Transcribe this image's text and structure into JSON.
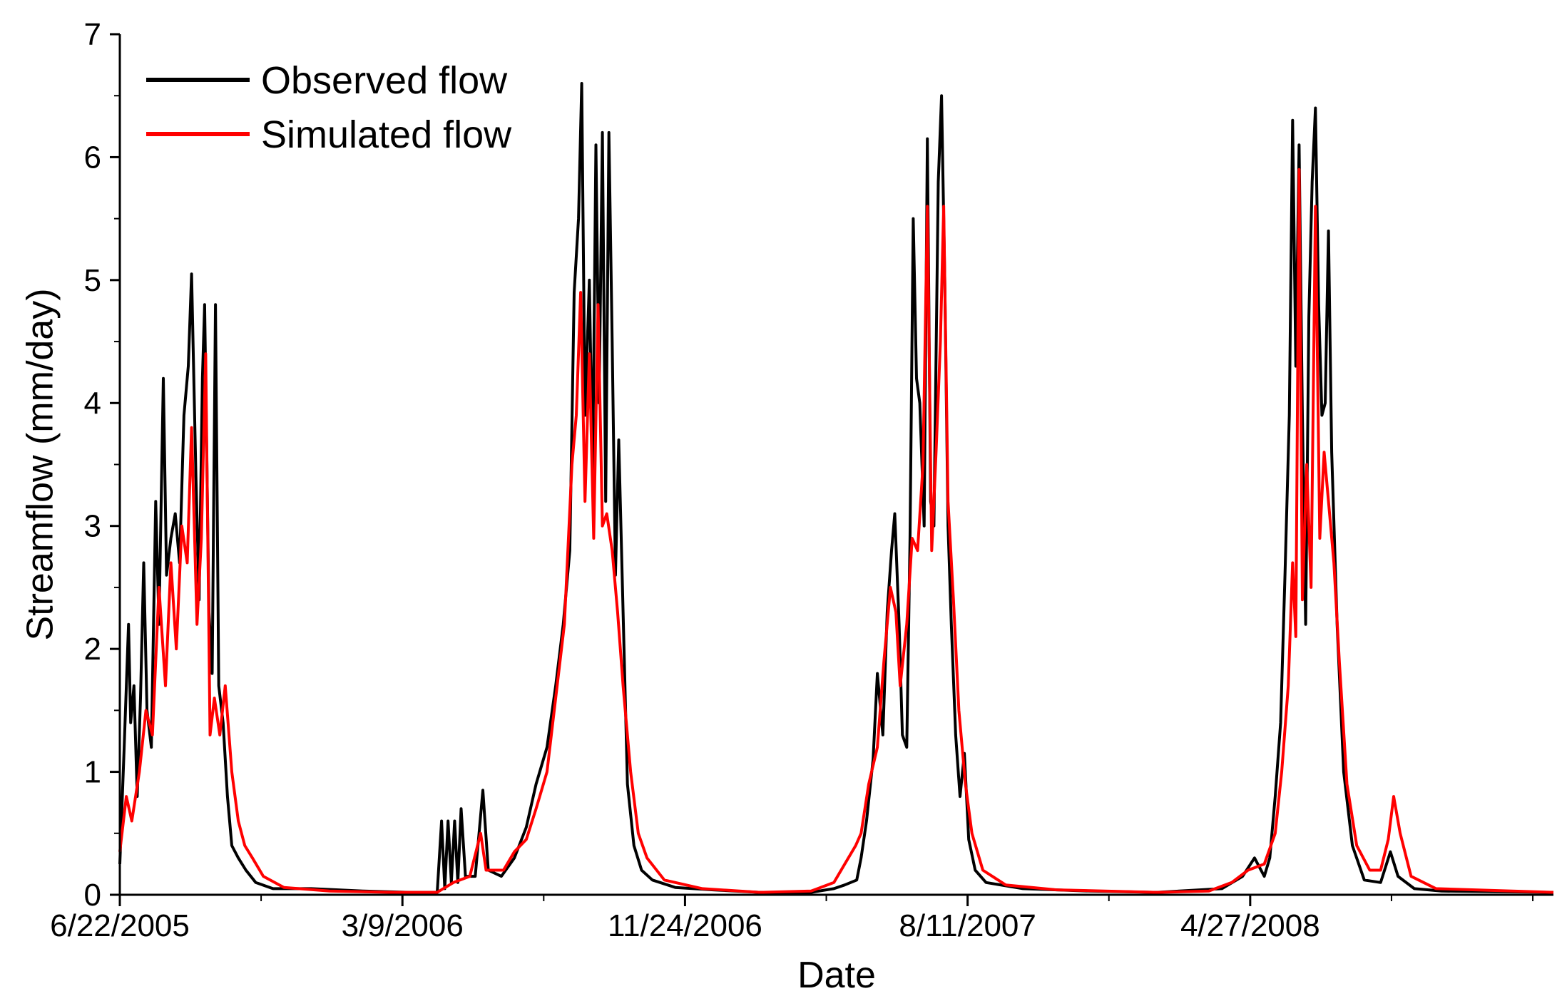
{
  "chart_data": {
    "type": "line",
    "xlabel": "Date",
    "ylabel": "Streamflow (mm/day)",
    "xlim": [
      "6/22/2005",
      "1/31/2009"
    ],
    "ylim": [
      0,
      7
    ],
    "x_ticks": [
      "6/22/2005",
      "3/9/2006",
      "11/24/2006",
      "8/11/2007",
      "4/27/2008"
    ],
    "y_ticks": [
      "0",
      "1",
      "2",
      "3",
      "4",
      "5",
      "6",
      "7"
    ],
    "grid": false,
    "legend_position": "top-left",
    "series": [
      {
        "name": "Observed flow",
        "color": "#000000",
        "points": [
          [
            "6/22/2005",
            0.25
          ],
          [
            "6/26/2005",
            1.2
          ],
          [
            "6/30/2005",
            2.2
          ],
          [
            "7/2/2005",
            1.4
          ],
          [
            "7/5/2005",
            1.7
          ],
          [
            "7/8/2005",
            0.8
          ],
          [
            "7/11/2005",
            1.6
          ],
          [
            "7/14/2005",
            2.7
          ],
          [
            "7/17/2005",
            1.5
          ],
          [
            "7/21/2005",
            1.2
          ],
          [
            "7/25/2005",
            3.2
          ],
          [
            "7/28/2005",
            2.2
          ],
          [
            "8/1/2005",
            4.2
          ],
          [
            "8/4/2005",
            2.6
          ],
          [
            "8/8/2005",
            2.9
          ],
          [
            "8/12/2005",
            3.1
          ],
          [
            "8/16/2005",
            2.7
          ],
          [
            "8/20/2005",
            3.9
          ],
          [
            "8/24/2005",
            4.3
          ],
          [
            "8/27/2005",
            5.05
          ],
          [
            "8/31/2005",
            3.4
          ],
          [
            "9/3/2005",
            2.4
          ],
          [
            "9/6/2005",
            4.2
          ],
          [
            "9/8/2005",
            4.8
          ],
          [
            "9/12/2005",
            2.3
          ],
          [
            "9/15/2005",
            1.8
          ],
          [
            "9/18/2005",
            4.8
          ],
          [
            "9/21/2005",
            1.7
          ],
          [
            "9/25/2005",
            1.4
          ],
          [
            "9/29/2005",
            0.8
          ],
          [
            "10/3/2005",
            0.4
          ],
          [
            "10/9/2005",
            0.3
          ],
          [
            "10/16/2005",
            0.2
          ],
          [
            "10/25/2005",
            0.1
          ],
          [
            "11/10/2005",
            0.05
          ],
          [
            "12/15/2005",
            0.05
          ],
          [
            "2/1/2006",
            0.03
          ],
          [
            "3/15/2006",
            0.02
          ],
          [
            "4/10/2006",
            0.02
          ],
          [
            "4/14/2006",
            0.6
          ],
          [
            "4/17/2006",
            0.05
          ],
          [
            "4/20/2006",
            0.6
          ],
          [
            "4/23/2006",
            0.1
          ],
          [
            "4/26/2006",
            0.6
          ],
          [
            "4/29/2006",
            0.1
          ],
          [
            "5/2/2006",
            0.7
          ],
          [
            "5/6/2006",
            0.15
          ],
          [
            "5/15/2006",
            0.15
          ],
          [
            "5/22/2006",
            0.85
          ],
          [
            "5/27/2006",
            0.2
          ],
          [
            "6/8/2006",
            0.15
          ],
          [
            "6/20/2006",
            0.3
          ],
          [
            "7/1/2006",
            0.55
          ],
          [
            "7/10/2006",
            0.9
          ],
          [
            "7/20/2006",
            1.2
          ],
          [
            "7/28/2006",
            1.7
          ],
          [
            "8/4/2006",
            2.2
          ],
          [
            "8/10/2006",
            2.8
          ],
          [
            "8/14/2006",
            4.9
          ],
          [
            "8/18/2006",
            5.5
          ],
          [
            "8/21/2006",
            6.6
          ],
          [
            "8/24/2006",
            3.9
          ],
          [
            "8/28/2006",
            5.0
          ],
          [
            "8/31/2006",
            3.4
          ],
          [
            "9/3/2006",
            6.1
          ],
          [
            "9/6/2006",
            4.0
          ],
          [
            "9/9/2006",
            6.2
          ],
          [
            "9/12/2006",
            3.2
          ],
          [
            "9/15/2006",
            6.2
          ],
          [
            "9/18/2006",
            4.5
          ],
          [
            "9/21/2006",
            2.6
          ],
          [
            "9/24/2006",
            3.7
          ],
          [
            "9/28/2006",
            2.3
          ],
          [
            "10/2/2006",
            0.9
          ],
          [
            "10/8/2006",
            0.4
          ],
          [
            "10/15/2006",
            0.2
          ],
          [
            "10/25/2006",
            0.12
          ],
          [
            "11/15/2006",
            0.06
          ],
          [
            "12/20/2006",
            0.04
          ],
          [
            "2/1/2007",
            0.02
          ],
          [
            "3/20/2007",
            0.02
          ],
          [
            "4/10/2007",
            0.05
          ],
          [
            "4/20/2007",
            0.08
          ],
          [
            "5/1/2007",
            0.12
          ],
          [
            "5/5/2007",
            0.3
          ],
          [
            "5/10/2007",
            0.6
          ],
          [
            "5/16/2007",
            1.1
          ],
          [
            "5/20/2007",
            1.8
          ],
          [
            "5/25/2007",
            1.3
          ],
          [
            "5/29/2007",
            2.3
          ],
          [
            "6/2/2007",
            2.8
          ],
          [
            "6/5/2007",
            3.1
          ],
          [
            "6/9/2007",
            2.2
          ],
          [
            "6/12/2007",
            1.3
          ],
          [
            "6/16/2007",
            1.2
          ],
          [
            "6/19/2007",
            2.9
          ],
          [
            "6/22/2007",
            5.5
          ],
          [
            "6/25/2007",
            4.2
          ],
          [
            "6/28/2007",
            4.0
          ],
          [
            "7/2/2007",
            3.0
          ],
          [
            "7/5/2007",
            6.15
          ],
          [
            "7/8/2007",
            3.2
          ],
          [
            "7/11/2007",
            3.0
          ],
          [
            "7/15/2007",
            5.8
          ],
          [
            "7/18/2007",
            6.5
          ],
          [
            "7/21/2007",
            5.0
          ],
          [
            "7/24/2007",
            3.0
          ],
          [
            "7/27/2007",
            2.2
          ],
          [
            "7/31/2007",
            1.3
          ],
          [
            "8/4/2007",
            0.8
          ],
          [
            "8/8/2007",
            1.15
          ],
          [
            "8/12/2007",
            0.45
          ],
          [
            "8/18/2007",
            0.2
          ],
          [
            "8/28/2007",
            0.1
          ],
          [
            "10/1/2007",
            0.05
          ],
          [
            "12/1/2007",
            0.03
          ],
          [
            "2/1/2008",
            0.02
          ],
          [
            "4/1/2008",
            0.05
          ],
          [
            "4/20/2008",
            0.15
          ],
          [
            "5/1/2008",
            0.3
          ],
          [
            "5/10/2008",
            0.15
          ],
          [
            "5/15/2008",
            0.3
          ],
          [
            "5/20/2008",
            0.8
          ],
          [
            "5/25/2008",
            1.4
          ],
          [
            "5/29/2008",
            2.6
          ],
          [
            "6/2/2008",
            3.9
          ],
          [
            "6/5/2008",
            6.3
          ],
          [
            "6/8/2008",
            4.3
          ],
          [
            "6/11/2008",
            6.1
          ],
          [
            "6/14/2008",
            3.9
          ],
          [
            "6/17/2008",
            2.2
          ],
          [
            "6/20/2008",
            4.7
          ],
          [
            "6/23/2008",
            5.8
          ],
          [
            "6/26/2008",
            6.4
          ],
          [
            "6/29/2008",
            4.8
          ],
          [
            "7/2/2008",
            3.9
          ],
          [
            "7/5/2008",
            4.0
          ],
          [
            "7/8/2008",
            5.4
          ],
          [
            "7/11/2008",
            3.6
          ],
          [
            "7/16/2008",
            2.2
          ],
          [
            "7/22/2008",
            1.0
          ],
          [
            "7/30/2008",
            0.4
          ],
          [
            "8/10/2008",
            0.12
          ],
          [
            "8/25/2008",
            0.1
          ],
          [
            "9/3/2008",
            0.35
          ],
          [
            "9/10/2008",
            0.15
          ],
          [
            "9/25/2008",
            0.05
          ],
          [
            "10/20/2008",
            0.03
          ],
          [
            "1/31/2009",
            0.02
          ]
        ]
      },
      {
        "name": "Simulated flow",
        "color": "#ff0000",
        "points": [
          [
            "6/22/2005",
            0.35
          ],
          [
            "6/28/2005",
            0.8
          ],
          [
            "7/3/2005",
            0.6
          ],
          [
            "7/10/2005",
            1.0
          ],
          [
            "7/16/2005",
            1.5
          ],
          [
            "7/22/2005",
            1.3
          ],
          [
            "7/28/2005",
            2.5
          ],
          [
            "8/3/2005",
            1.7
          ],
          [
            "8/8/2005",
            2.7
          ],
          [
            "8/13/2005",
            2.0
          ],
          [
            "8/18/2005",
            3.0
          ],
          [
            "8/23/2005",
            2.7
          ],
          [
            "8/27/2005",
            3.8
          ],
          [
            "9/1/2005",
            2.2
          ],
          [
            "9/5/2005",
            2.9
          ],
          [
            "9/9/2005",
            4.4
          ],
          [
            "9/13/2005",
            1.3
          ],
          [
            "9/17/2005",
            1.6
          ],
          [
            "9/22/2005",
            1.3
          ],
          [
            "9/27/2005",
            1.7
          ],
          [
            "10/3/2005",
            1.0
          ],
          [
            "10/9/2005",
            0.6
          ],
          [
            "10/15/2005",
            0.4
          ],
          [
            "10/22/2005",
            0.3
          ],
          [
            "11/1/2005",
            0.15
          ],
          [
            "11/20/2005",
            0.06
          ],
          [
            "1/1/2006",
            0.03
          ],
          [
            "3/1/2006",
            0.02
          ],
          [
            "4/10/2006",
            0.02
          ],
          [
            "4/25/2006",
            0.1
          ],
          [
            "5/10/2006",
            0.15
          ],
          [
            "5/20/2006",
            0.5
          ],
          [
            "5/25/2006",
            0.2
          ],
          [
            "6/10/2006",
            0.2
          ],
          [
            "6/20/2006",
            0.35
          ],
          [
            "7/1/2006",
            0.45
          ],
          [
            "7/10/2006",
            0.7
          ],
          [
            "7/20/2006",
            1.0
          ],
          [
            "7/28/2006",
            1.6
          ],
          [
            "8/5/2006",
            2.2
          ],
          [
            "8/12/2006",
            3.5
          ],
          [
            "8/16/2006",
            3.9
          ],
          [
            "8/20/2006",
            4.9
          ],
          [
            "8/24/2006",
            3.2
          ],
          [
            "8/28/2006",
            4.4
          ],
          [
            "9/1/2006",
            2.9
          ],
          [
            "9/5/2006",
            4.8
          ],
          [
            "9/9/2006",
            3.0
          ],
          [
            "9/13/2006",
            3.1
          ],
          [
            "9/18/2006",
            2.8
          ],
          [
            "9/23/2006",
            2.3
          ],
          [
            "9/28/2006",
            1.7
          ],
          [
            "10/5/2006",
            1.0
          ],
          [
            "10/12/2006",
            0.5
          ],
          [
            "10/20/2006",
            0.3
          ],
          [
            "11/5/2006",
            0.12
          ],
          [
            "12/10/2006",
            0.05
          ],
          [
            "2/1/2007",
            0.02
          ],
          [
            "3/20/2007",
            0.03
          ],
          [
            "4/10/2007",
            0.1
          ],
          [
            "4/20/2007",
            0.25
          ],
          [
            "4/30/2007",
            0.4
          ],
          [
            "5/5/2007",
            0.5
          ],
          [
            "5/12/2007",
            0.9
          ],
          [
            "5/20/2007",
            1.2
          ],
          [
            "5/26/2007",
            1.9
          ],
          [
            "6/1/2007",
            2.5
          ],
          [
            "6/6/2007",
            2.3
          ],
          [
            "6/10/2007",
            1.7
          ],
          [
            "6/16/2007",
            2.2
          ],
          [
            "6/21/2007",
            2.9
          ],
          [
            "6/26/2007",
            2.8
          ],
          [
            "7/1/2007",
            3.5
          ],
          [
            "7/5/2007",
            5.6
          ],
          [
            "7/9/2007",
            2.8
          ],
          [
            "7/13/2007",
            3.6
          ],
          [
            "7/17/2007",
            4.5
          ],
          [
            "7/20/2007",
            5.6
          ],
          [
            "7/24/2007",
            3.2
          ],
          [
            "7/29/2007",
            2.4
          ],
          [
            "8/3/2007",
            1.5
          ],
          [
            "8/9/2007",
            0.9
          ],
          [
            "8/15/2007",
            0.5
          ],
          [
            "8/25/2007",
            0.2
          ],
          [
            "9/15/2007",
            0.08
          ],
          [
            "11/1/2007",
            0.04
          ],
          [
            "2/1/2008",
            0.02
          ],
          [
            "3/20/2008",
            0.03
          ],
          [
            "4/10/2008",
            0.1
          ],
          [
            "4/25/2008",
            0.2
          ],
          [
            "5/10/2008",
            0.25
          ],
          [
            "5/20/2008",
            0.5
          ],
          [
            "5/26/2008",
            1.0
          ],
          [
            "6/1/2008",
            1.7
          ],
          [
            "6/5/2008",
            2.7
          ],
          [
            "6/8/2008",
            2.1
          ],
          [
            "6/11/2008",
            5.9
          ],
          [
            "6/14/2008",
            2.4
          ],
          [
            "6/18/2008",
            3.5
          ],
          [
            "6/22/2008",
            2.5
          ],
          [
            "6/26/2008",
            5.6
          ],
          [
            "6/30/2008",
            2.9
          ],
          [
            "7/4/2008",
            3.6
          ],
          [
            "7/8/2008",
            3.2
          ],
          [
            "7/13/2008",
            2.7
          ],
          [
            "7/18/2008",
            1.9
          ],
          [
            "7/25/2008",
            0.9
          ],
          [
            "8/3/2008",
            0.4
          ],
          [
            "8/15/2008",
            0.2
          ],
          [
            "8/25/2008",
            0.2
          ],
          [
            "9/1/2008",
            0.45
          ],
          [
            "9/6/2008",
            0.8
          ],
          [
            "9/12/2008",
            0.5
          ],
          [
            "9/22/2008",
            0.15
          ],
          [
            "10/15/2008",
            0.05
          ],
          [
            "1/31/2009",
            0.02
          ]
        ]
      }
    ]
  }
}
